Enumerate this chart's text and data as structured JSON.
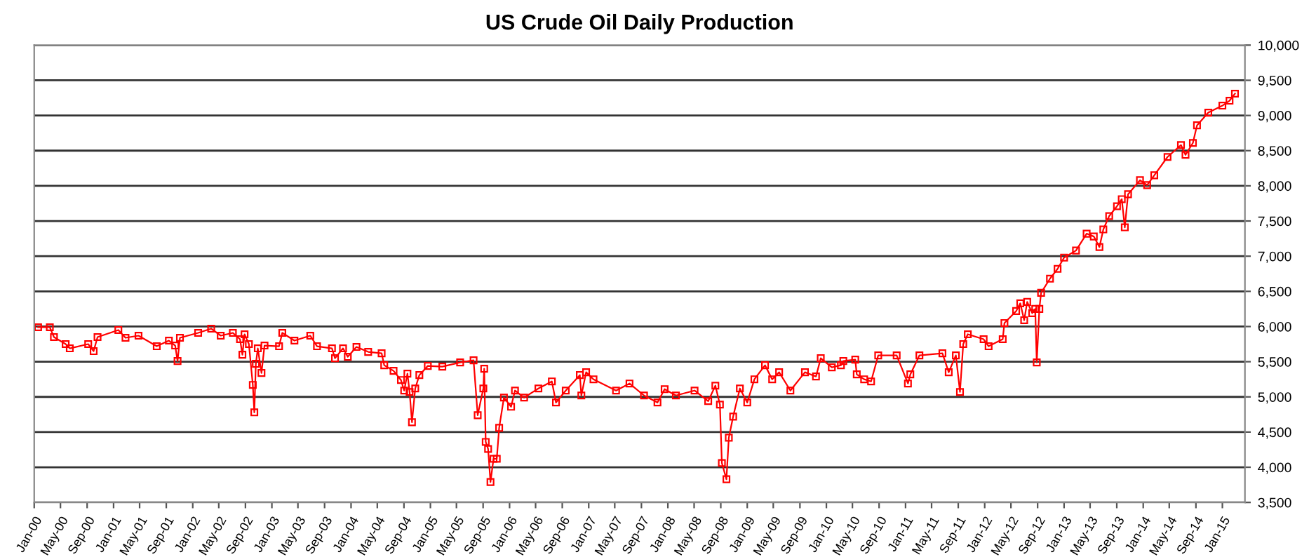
{
  "chart_data": {
    "type": "line",
    "title": "US Crude Oil Daily Production",
    "marker": "square",
    "line_style": "solid",
    "grid": "y",
    "series": [
      {
        "color": "#ff0000",
        "x": [
          "2000-01-19",
          "2000-03-13",
          "2000-04-01",
          "2000-05-25",
          "2000-06-13",
          "2000-09-06",
          "2000-10-01",
          "2000-10-19",
          "2001-01-23",
          "2001-02-25",
          "2001-04-26",
          "2001-07-19",
          "2001-09-13",
          "2001-10-12",
          "2001-10-23",
          "2001-11-03",
          "2002-01-26",
          "2002-03-27",
          "2002-05-10",
          "2002-07-05",
          "2002-08-07",
          "2002-08-18",
          "2002-08-28",
          "2002-09-17",
          "2002-10-05",
          "2002-10-12",
          "2002-10-19",
          "2002-10-28",
          "2002-11-14",
          "2002-11-28",
          "2003-02-03",
          "2003-02-18",
          "2003-04-15",
          "2003-06-27",
          "2003-07-28",
          "2003-10-05",
          "2003-10-19",
          "2003-11-25",
          "2003-12-17",
          "2004-01-26",
          "2004-03-20",
          "2004-05-21",
          "2004-06-02",
          "2004-07-15",
          "2004-08-18",
          "2004-09-02",
          "2004-09-17",
          "2004-09-27",
          "2004-10-08",
          "2004-10-23",
          "2004-11-11",
          "2004-12-20",
          "2005-02-25",
          "2005-05-18",
          "2005-07-19",
          "2005-08-07",
          "2005-09-02",
          "2005-09-06",
          "2005-09-13",
          "2005-09-24",
          "2005-10-05",
          "2005-10-19",
          "2005-11-03",
          "2005-11-14",
          "2005-12-06",
          "2006-01-08",
          "2006-01-26",
          "2006-03-09",
          "2006-05-14",
          "2006-07-15",
          "2006-08-03",
          "2006-09-17",
          "2006-11-21",
          "2006-11-28",
          "2006-12-20",
          "2007-01-23",
          "2007-05-07",
          "2007-07-08",
          "2007-09-13",
          "2007-11-14",
          "2007-12-17",
          "2008-02-07",
          "2008-05-03",
          "2008-07-05",
          "2008-08-07",
          "2008-08-28",
          "2008-09-06",
          "2008-09-27",
          "2008-10-08",
          "2008-10-28",
          "2008-11-28",
          "2009-01-01",
          "2009-02-03",
          "2009-03-24",
          "2009-04-26",
          "2009-05-28",
          "2009-07-19",
          "2009-09-24",
          "2009-11-14",
          "2009-12-06",
          "2010-01-26",
          "2010-03-09",
          "2010-03-20",
          "2010-05-14",
          "2010-05-21",
          "2010-06-24",
          "2010-07-26",
          "2010-08-28",
          "2010-11-21",
          "2011-01-12",
          "2011-01-23",
          "2011-03-06",
          "2011-06-20",
          "2011-07-19",
          "2011-08-21",
          "2011-09-09",
          "2011-09-24",
          "2011-10-15",
          "2011-12-27",
          "2012-01-19",
          "2012-03-24",
          "2012-04-01",
          "2012-05-25",
          "2012-06-13",
          "2012-07-01",
          "2012-07-15",
          "2012-08-07",
          "2012-08-21",
          "2012-08-28",
          "2012-09-09",
          "2012-09-17",
          "2012-10-28",
          "2012-12-02",
          "2013-01-01",
          "2013-02-25",
          "2013-04-15",
          "2013-05-18",
          "2013-06-13",
          "2013-07-01",
          "2013-07-28",
          "2013-09-02",
          "2013-09-24",
          "2013-10-08",
          "2013-10-23",
          "2013-12-17",
          "2014-01-19",
          "2014-02-21",
          "2014-04-23",
          "2014-06-24",
          "2014-07-15",
          "2014-08-18",
          "2014-09-06",
          "2014-10-28",
          "2015-01-01",
          "2015-02-03",
          "2015-02-28"
        ],
        "values": [
          5990,
          5990,
          5850,
          5750,
          5690,
          5750,
          5650,
          5850,
          5950,
          5840,
          5870,
          5720,
          5800,
          5730,
          5510,
          5840,
          5910,
          5970,
          5870,
          5910,
          5820,
          5600,
          5890,
          5750,
          5170,
          4780,
          5470,
          5690,
          5340,
          5730,
          5720,
          5910,
          5800,
          5870,
          5720,
          5690,
          5550,
          5690,
          5570,
          5710,
          5640,
          5620,
          5450,
          5370,
          5240,
          5090,
          5330,
          5070,
          4640,
          5120,
          5310,
          5440,
          5430,
          5490,
          5520,
          4740,
          5120,
          5400,
          4360,
          4260,
          3790,
          4120,
          4120,
          4560,
          4990,
          4860,
          5090,
          4990,
          5120,
          5220,
          4920,
          5090,
          5310,
          5020,
          5350,
          5250,
          5090,
          5190,
          5020,
          4920,
          5110,
          5020,
          5090,
          4940,
          5160,
          4890,
          4060,
          3830,
          4420,
          4720,
          5120,
          4920,
          5250,
          5450,
          5250,
          5350,
          5090,
          5350,
          5290,
          5550,
          5420,
          5450,
          5510,
          5530,
          5320,
          5250,
          5220,
          5590,
          5590,
          5190,
          5320,
          5590,
          5620,
          5350,
          5590,
          5070,
          5750,
          5890,
          5820,
          5720,
          5820,
          6050,
          6220,
          6330,
          6090,
          6350,
          6190,
          6250,
          5490,
          6250,
          6480,
          6680,
          6820,
          6980,
          7080,
          7320,
          7280,
          7130,
          7380,
          7570,
          7710,
          7810,
          7410,
          7880,
          8080,
          8010,
          8150,
          8410,
          8580,
          8440,
          8610,
          8860,
          9040,
          9140,
          9210,
          9310
        ]
      }
    ],
    "xlim": [
      "2000-01-01",
      "2015-04-15"
    ],
    "xticks": [
      {
        "value": "2000-01-01",
        "label": "Jan-00"
      },
      {
        "value": "2000-05-01",
        "label": "May-00"
      },
      {
        "value": "2000-09-01",
        "label": "Sep-00"
      },
      {
        "value": "2001-01-01",
        "label": "Jan-01"
      },
      {
        "value": "2001-05-01",
        "label": "May-01"
      },
      {
        "value": "2001-09-01",
        "label": "Sep-01"
      },
      {
        "value": "2002-01-01",
        "label": "Jan-02"
      },
      {
        "value": "2002-05-01",
        "label": "May-02"
      },
      {
        "value": "2002-09-01",
        "label": "Sep-02"
      },
      {
        "value": "2003-01-01",
        "label": "Jan-03"
      },
      {
        "value": "2003-05-01",
        "label": "May-03"
      },
      {
        "value": "2003-09-01",
        "label": "Sep-03"
      },
      {
        "value": "2004-01-01",
        "label": "Jan-04"
      },
      {
        "value": "2004-05-01",
        "label": "May-04"
      },
      {
        "value": "2004-09-01",
        "label": "Sep-04"
      },
      {
        "value": "2005-01-01",
        "label": "Jan-05"
      },
      {
        "value": "2005-05-01",
        "label": "May-05"
      },
      {
        "value": "2005-09-01",
        "label": "Sep-05"
      },
      {
        "value": "2006-01-01",
        "label": "Jan-06"
      },
      {
        "value": "2006-05-01",
        "label": "May-06"
      },
      {
        "value": "2006-09-01",
        "label": "Sep-06"
      },
      {
        "value": "2007-01-01",
        "label": "Jan-07"
      },
      {
        "value": "2007-05-01",
        "label": "May-07"
      },
      {
        "value": "2007-09-01",
        "label": "Sep-07"
      },
      {
        "value": "2008-01-01",
        "label": "Jan-08"
      },
      {
        "value": "2008-05-01",
        "label": "May-08"
      },
      {
        "value": "2008-09-01",
        "label": "Sep-08"
      },
      {
        "value": "2009-01-01",
        "label": "Jan-09"
      },
      {
        "value": "2009-05-01",
        "label": "May-09"
      },
      {
        "value": "2009-09-01",
        "label": "Sep-09"
      },
      {
        "value": "2010-01-01",
        "label": "Jan-10"
      },
      {
        "value": "2010-05-01",
        "label": "May-10"
      },
      {
        "value": "2010-09-01",
        "label": "Sep-10"
      },
      {
        "value": "2011-01-01",
        "label": "Jan-11"
      },
      {
        "value": "2011-05-01",
        "label": "May-11"
      },
      {
        "value": "2011-09-01",
        "label": "Sep-11"
      },
      {
        "value": "2012-01-01",
        "label": "Jan-12"
      },
      {
        "value": "2012-05-01",
        "label": "May-12"
      },
      {
        "value": "2012-09-01",
        "label": "Sep-12"
      },
      {
        "value": "2013-01-01",
        "label": "Jan-13"
      },
      {
        "value": "2013-05-01",
        "label": "May-13"
      },
      {
        "value": "2013-09-01",
        "label": "Sep-13"
      },
      {
        "value": "2014-01-01",
        "label": "Jan-14"
      },
      {
        "value": "2014-05-01",
        "label": "May-14"
      },
      {
        "value": "2014-09-01",
        "label": "Sep-14"
      },
      {
        "value": "2015-01-01",
        "label": "Jan-15"
      }
    ],
    "ylim": [
      3500,
      10000
    ],
    "yticks": [
      {
        "value": 3500,
        "label": "3,500"
      },
      {
        "value": 4000,
        "label": "4,000"
      },
      {
        "value": 4500,
        "label": "4,500"
      },
      {
        "value": 5000,
        "label": "5,000"
      },
      {
        "value": 5500,
        "label": "5,500"
      },
      {
        "value": 6000,
        "label": "6,000"
      },
      {
        "value": 6500,
        "label": "6,500"
      },
      {
        "value": 7000,
        "label": "7,000"
      },
      {
        "value": 7500,
        "label": "7,500"
      },
      {
        "value": 8000,
        "label": "8,000"
      },
      {
        "value": 8500,
        "label": "8,500"
      },
      {
        "value": 9000,
        "label": "9,000"
      },
      {
        "value": 9500,
        "label": "9,500"
      },
      {
        "value": 10000,
        "label": "10,000"
      }
    ]
  }
}
